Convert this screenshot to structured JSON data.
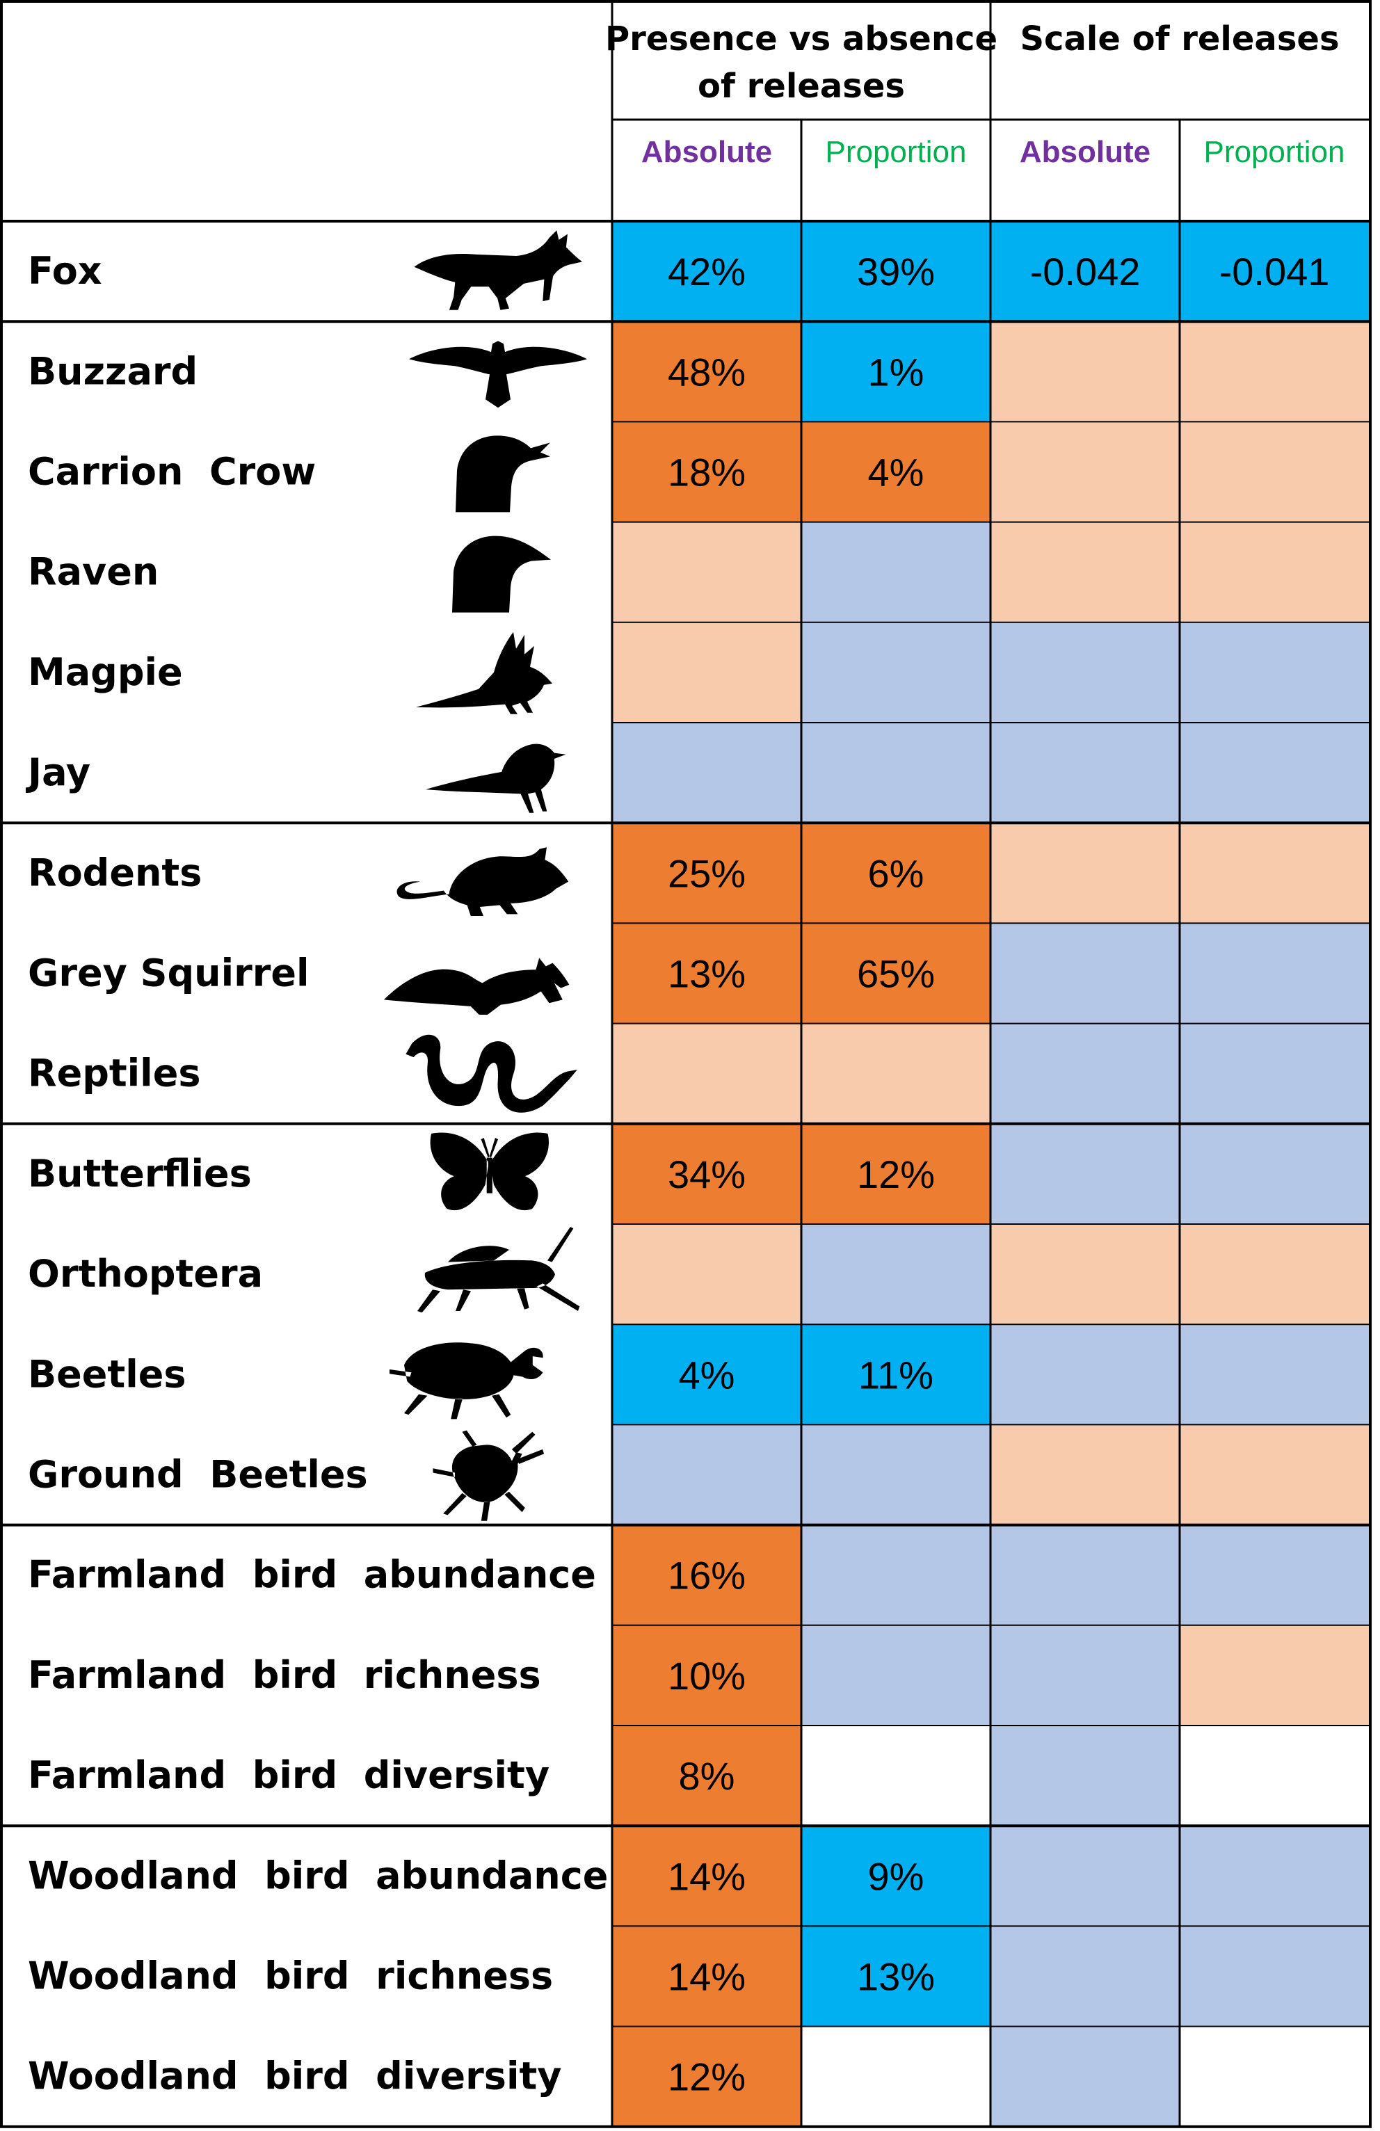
{
  "chart_data": {
    "type": "table",
    "group_headers": [
      {
        "line1": "Presence vs absence",
        "line2": "of releases"
      },
      {
        "line1": "Scale of releases",
        "line2": ""
      }
    ],
    "sub_headers": [
      "Absolute",
      "Proportion",
      "Absolute",
      "Proportion"
    ],
    "colors": {
      "legend_code_meaning": "o = dark orange, p = light orange/peach, b = bright blue, l = light blue, w = white",
      "o": "#ED7D31",
      "p": "#F8CBAD",
      "b": "#00B0F0",
      "l": "#B4C7E7",
      "w": "#FFFFFF",
      "absolute_text": "#7030A0",
      "proportion_text": "#00B050"
    },
    "rows": [
      {
        "label": "Fox",
        "icon": "fox-icon",
        "cells": [
          {
            "c": "b",
            "v": "42%"
          },
          {
            "c": "b",
            "v": "39%"
          },
          {
            "c": "b",
            "v": "-0.042"
          },
          {
            "c": "b",
            "v": "-0.041"
          }
        ]
      },
      {
        "label": "Buzzard",
        "icon": "buzzard-icon",
        "cells": [
          {
            "c": "o",
            "v": "48%"
          },
          {
            "c": "b",
            "v": "1%"
          },
          {
            "c": "p",
            "v": ""
          },
          {
            "c": "p",
            "v": ""
          }
        ]
      },
      {
        "label": "Carrion  Crow",
        "icon": "crow-icon",
        "cells": [
          {
            "c": "o",
            "v": "18%"
          },
          {
            "c": "o",
            "v": "4%"
          },
          {
            "c": "p",
            "v": ""
          },
          {
            "c": "p",
            "v": ""
          }
        ]
      },
      {
        "label": "Raven",
        "icon": "raven-icon",
        "cells": [
          {
            "c": "p",
            "v": ""
          },
          {
            "c": "l",
            "v": ""
          },
          {
            "c": "p",
            "v": ""
          },
          {
            "c": "p",
            "v": ""
          }
        ]
      },
      {
        "label": "Magpie",
        "icon": "magpie-icon",
        "cells": [
          {
            "c": "p",
            "v": ""
          },
          {
            "c": "l",
            "v": ""
          },
          {
            "c": "l",
            "v": ""
          },
          {
            "c": "l",
            "v": ""
          }
        ]
      },
      {
        "label": "Jay",
        "icon": "jay-icon",
        "cells": [
          {
            "c": "l",
            "v": ""
          },
          {
            "c": "l",
            "v": ""
          },
          {
            "c": "l",
            "v": ""
          },
          {
            "c": "l",
            "v": ""
          }
        ]
      },
      {
        "label": "Rodents",
        "icon": "rodent-icon",
        "cells": [
          {
            "c": "o",
            "v": "25%"
          },
          {
            "c": "o",
            "v": "6%"
          },
          {
            "c": "p",
            "v": ""
          },
          {
            "c": "p",
            "v": ""
          }
        ]
      },
      {
        "label": "Grey Squirrel",
        "icon": "squirrel-icon",
        "cells": [
          {
            "c": "o",
            "v": "13%"
          },
          {
            "c": "o",
            "v": "65%"
          },
          {
            "c": "l",
            "v": ""
          },
          {
            "c": "l",
            "v": ""
          }
        ]
      },
      {
        "label": "Reptiles",
        "icon": "snake-icon",
        "cells": [
          {
            "c": "p",
            "v": ""
          },
          {
            "c": "p",
            "v": ""
          },
          {
            "c": "l",
            "v": ""
          },
          {
            "c": "l",
            "v": ""
          }
        ]
      },
      {
        "label": "Butterflies",
        "icon": "butterfly-icon",
        "cells": [
          {
            "c": "o",
            "v": "34%"
          },
          {
            "c": "o",
            "v": "12%"
          },
          {
            "c": "l",
            "v": ""
          },
          {
            "c": "l",
            "v": ""
          }
        ]
      },
      {
        "label": "Orthoptera",
        "icon": "grasshopper-icon",
        "cells": [
          {
            "c": "p",
            "v": ""
          },
          {
            "c": "l",
            "v": ""
          },
          {
            "c": "p",
            "v": ""
          },
          {
            "c": "p",
            "v": ""
          }
        ]
      },
      {
        "label": "Beetles",
        "icon": "beetle-icon",
        "cells": [
          {
            "c": "b",
            "v": "4%"
          },
          {
            "c": "b",
            "v": "11%"
          },
          {
            "c": "l",
            "v": ""
          },
          {
            "c": "l",
            "v": ""
          }
        ]
      },
      {
        "label": "Ground  Beetles",
        "icon": "ground-beetle-icon",
        "cells": [
          {
            "c": "l",
            "v": ""
          },
          {
            "c": "l",
            "v": ""
          },
          {
            "c": "p",
            "v": ""
          },
          {
            "c": "p",
            "v": ""
          }
        ]
      },
      {
        "label": "Farmland  bird  abundance",
        "icon": "",
        "cells": [
          {
            "c": "o",
            "v": "16%"
          },
          {
            "c": "l",
            "v": ""
          },
          {
            "c": "l",
            "v": ""
          },
          {
            "c": "l",
            "v": ""
          }
        ]
      },
      {
        "label": "Farmland  bird  richness",
        "icon": "",
        "cells": [
          {
            "c": "o",
            "v": "10%"
          },
          {
            "c": "l",
            "v": ""
          },
          {
            "c": "l",
            "v": ""
          },
          {
            "c": "p",
            "v": ""
          }
        ]
      },
      {
        "label": "Farmland  bird  diversity",
        "icon": "",
        "cells": [
          {
            "c": "o",
            "v": "8%"
          },
          {
            "c": "w",
            "v": ""
          },
          {
            "c": "l",
            "v": ""
          },
          {
            "c": "w",
            "v": ""
          }
        ]
      },
      {
        "label": "Woodland  bird  abundance",
        "icon": "",
        "cells": [
          {
            "c": "o",
            "v": "14%"
          },
          {
            "c": "b",
            "v": "9%"
          },
          {
            "c": "l",
            "v": ""
          },
          {
            "c": "l",
            "v": ""
          }
        ]
      },
      {
        "label": "Woodland  bird  richness",
        "icon": "",
        "cells": [
          {
            "c": "o",
            "v": "14%"
          },
          {
            "c": "b",
            "v": "13%"
          },
          {
            "c": "l",
            "v": ""
          },
          {
            "c": "l",
            "v": ""
          }
        ]
      },
      {
        "label": "Woodland  bird  diversity",
        "icon": "",
        "cells": [
          {
            "c": "o",
            "v": "12%"
          },
          {
            "c": "w",
            "v": ""
          },
          {
            "c": "l",
            "v": ""
          },
          {
            "c": "w",
            "v": ""
          }
        ]
      }
    ],
    "group_breaks_after_row": [
      0,
      5,
      8,
      12,
      15
    ]
  }
}
